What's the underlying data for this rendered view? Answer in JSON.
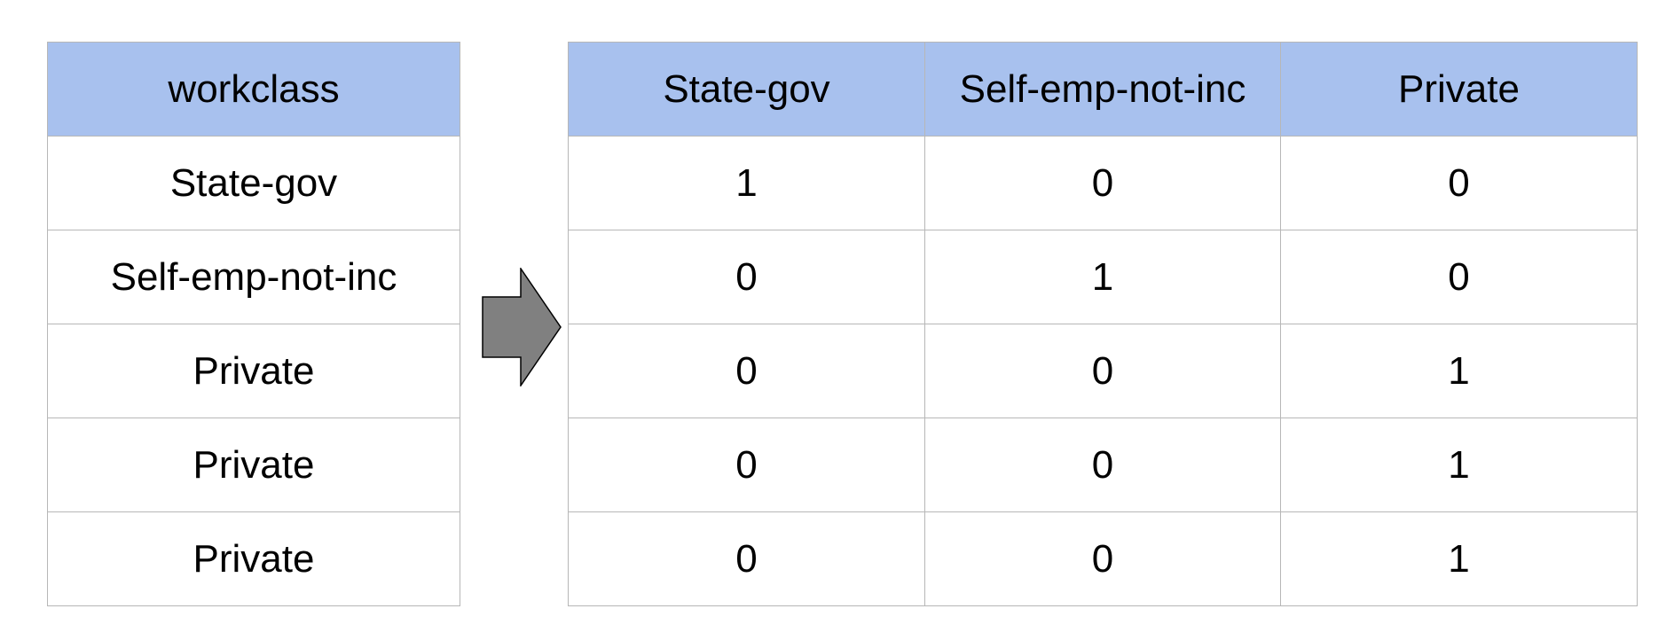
{
  "left_table": {
    "header": "workclass",
    "rows": [
      "State-gov",
      "Self-emp-not-inc",
      "Private",
      "Private",
      "Private"
    ]
  },
  "right_table": {
    "headers": [
      "State-gov",
      "Self-emp-not-inc",
      "Private"
    ],
    "rows": [
      [
        "1",
        "0",
        "0"
      ],
      [
        "0",
        "1",
        "0"
      ],
      [
        "0",
        "0",
        "1"
      ],
      [
        "0",
        "0",
        "1"
      ],
      [
        "0",
        "0",
        "1"
      ]
    ]
  },
  "colors": {
    "header_fill": "#a8c1ee",
    "grid_line": "#b7b7b7",
    "arrow_fill": "#808080",
    "arrow_stroke": "#000000"
  },
  "arrow": {
    "icon": "right-arrow-icon"
  }
}
